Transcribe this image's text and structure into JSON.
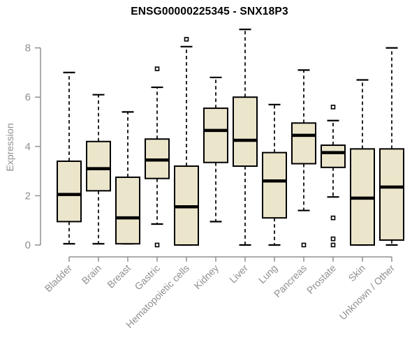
{
  "title": "ENSG00000225345 - SNX18P3",
  "chart_data": {
    "type": "boxplot",
    "title": "ENSG00000225345 - SNX18P3",
    "xlabel": "",
    "ylabel": "Expression",
    "ylim": [
      0,
      8
    ],
    "yticks": [
      0,
      2,
      4,
      6,
      8
    ],
    "grid": false,
    "legend": null,
    "categories": [
      "Bladder",
      "Brain",
      "Breast",
      "Gastric",
      "Hematopoietic cells",
      "Kidney",
      "Liver",
      "Lung",
      "Pancreas",
      "Prostate",
      "Skin",
      "Unknown / Other"
    ],
    "series": [
      {
        "category": "Bladder",
        "whisker_low": 0.05,
        "q1": 0.95,
        "median": 2.05,
        "q3": 3.4,
        "whisker_high": 7.0,
        "outliers": []
      },
      {
        "category": "Brain",
        "whisker_low": 0.05,
        "q1": 2.2,
        "median": 3.1,
        "q3": 4.2,
        "whisker_high": 6.1,
        "outliers": []
      },
      {
        "category": "Breast",
        "whisker_low": 0.05,
        "q1": 0.05,
        "median": 1.1,
        "q3": 2.75,
        "whisker_high": 5.4,
        "outliers": []
      },
      {
        "category": "Gastric",
        "whisker_low": 0.85,
        "q1": 2.7,
        "median": 3.45,
        "q3": 4.3,
        "whisker_high": 6.4,
        "outliers": [
          7.15,
          0.0
        ]
      },
      {
        "category": "Hematopoietic cells",
        "whisker_low": 0.0,
        "q1": 0.0,
        "median": 1.55,
        "q3": 3.2,
        "whisker_high": 8.05,
        "outliers": [
          8.35
        ]
      },
      {
        "category": "Kidney",
        "whisker_low": 0.95,
        "q1": 3.35,
        "median": 4.65,
        "q3": 5.55,
        "whisker_high": 6.8,
        "outliers": []
      },
      {
        "category": "Liver",
        "whisker_low": 0.0,
        "q1": 3.2,
        "median": 4.25,
        "q3": 6.0,
        "whisker_high": 8.75,
        "outliers": []
      },
      {
        "category": "Lung",
        "whisker_low": 0.0,
        "q1": 1.1,
        "median": 2.6,
        "q3": 3.75,
        "whisker_high": 5.7,
        "outliers": []
      },
      {
        "category": "Pancreas",
        "whisker_low": 1.4,
        "q1": 3.3,
        "median": 4.45,
        "q3": 4.95,
        "whisker_high": 7.1,
        "outliers": [
          0.0
        ]
      },
      {
        "category": "Prostate",
        "whisker_low": 1.95,
        "q1": 3.15,
        "median": 3.75,
        "q3": 4.05,
        "whisker_high": 5.05,
        "outliers": [
          5.6,
          1.1,
          0.25,
          0.0
        ]
      },
      {
        "category": "Skin",
        "whisker_low": 0.0,
        "q1": 0.0,
        "median": 1.9,
        "q3": 3.9,
        "whisker_high": 6.7,
        "outliers": []
      },
      {
        "category": "Unknown / Other",
        "whisker_low": 0.0,
        "q1": 0.2,
        "median": 2.35,
        "q3": 3.9,
        "whisker_high": 8.0,
        "outliers": []
      }
    ],
    "colors": {
      "box_fill": "#ebe5cb",
      "box_border": "#000000",
      "median": "#000000",
      "whisker": "#000000",
      "outlier": "#000000",
      "axis": "#909090",
      "tick_label": "#909090",
      "title": "#000000",
      "background": "#ffffff"
    }
  }
}
